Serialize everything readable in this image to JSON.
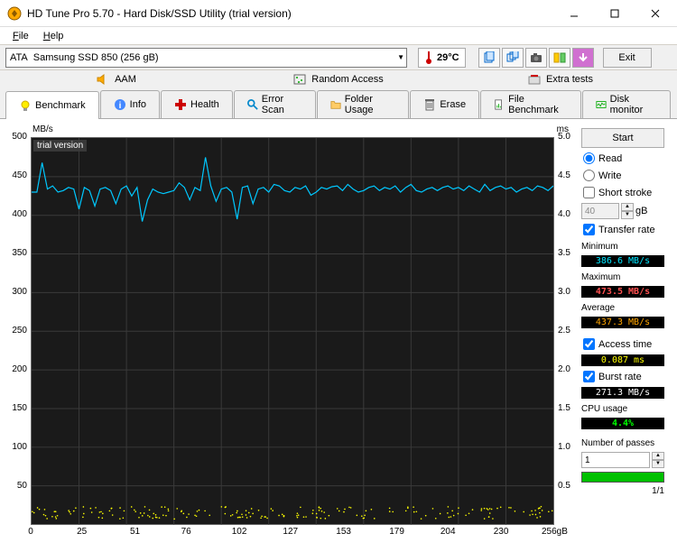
{
  "window": {
    "title": "HD Tune Pro 5.70 - Hard Disk/SSD Utility (trial version)"
  },
  "menu": {
    "file": "File",
    "help": "Help"
  },
  "drive": {
    "prefix": "ATA",
    "name": "Samsung SSD 850 (256 gB)"
  },
  "temp": "29°C",
  "exit": "Exit",
  "toprow": {
    "aam": "AAM",
    "random_access": "Random Access",
    "extra_tests": "Extra tests"
  },
  "tabs": {
    "benchmark": "Benchmark",
    "info": "Info",
    "health": "Health",
    "error_scan": "Error Scan",
    "folder_usage": "Folder Usage",
    "erase": "Erase",
    "file_benchmark": "File Benchmark",
    "disk_monitor": "Disk monitor"
  },
  "chart": {
    "watermark": "trial version",
    "y_left_label": "MB/s",
    "y_right_label": "ms",
    "y_left_max": 500,
    "y_left_step": 50,
    "y_right_max": 5.0,
    "y_right_step": 0.5,
    "x_max": 256,
    "x_label": "256gB",
    "x_ticks": [
      0,
      25,
      51,
      76,
      102,
      127,
      153,
      179,
      204,
      230
    ],
    "line_color": "#00c8ff",
    "grid_color": "#3a3a3a",
    "bg_color": "#1a1a1a",
    "access_color": "#ffff00",
    "transfer_y": [
      430,
      430,
      468,
      434,
      438,
      430,
      432,
      436,
      434,
      408,
      436,
      432,
      412,
      434,
      436,
      432,
      415,
      434,
      438,
      425,
      436,
      392,
      420,
      434,
      430,
      428,
      430,
      432,
      442,
      436,
      420,
      436,
      432,
      475,
      438,
      418,
      434,
      436,
      430,
      395,
      436,
      438,
      415,
      434,
      436,
      430,
      440,
      438,
      432,
      430,
      436,
      434,
      438,
      426,
      430,
      436,
      434,
      437,
      438,
      432,
      440,
      434,
      430,
      432,
      436,
      438,
      432,
      436,
      434,
      438,
      430,
      436,
      440,
      432,
      430,
      434,
      436,
      432,
      436,
      438,
      434,
      436,
      432,
      438,
      434,
      430,
      440,
      432,
      436,
      438,
      434,
      436,
      430,
      434,
      436,
      432,
      438,
      436,
      432,
      438
    ]
  },
  "side": {
    "start": "Start",
    "read": "Read",
    "write": "Write",
    "short_stroke": "Short stroke",
    "short_stroke_val": "40",
    "short_stroke_unit": "gB",
    "transfer_rate": "Transfer rate",
    "minimum": "Minimum",
    "min_val": "386.6 MB/s",
    "maximum": "Maximum",
    "max_val": "473.5 MB/s",
    "average": "Average",
    "avg_val": "437.3 MB/s",
    "access_time": "Access time",
    "access_val": "0.087 ms",
    "burst_rate": "Burst rate",
    "burst_val": "271.3 MB/s",
    "cpu_usage": "CPU usage",
    "cpu_val": "4.4%",
    "passes": "Number of passes",
    "passes_val": "1",
    "passes_done": "1/1"
  }
}
